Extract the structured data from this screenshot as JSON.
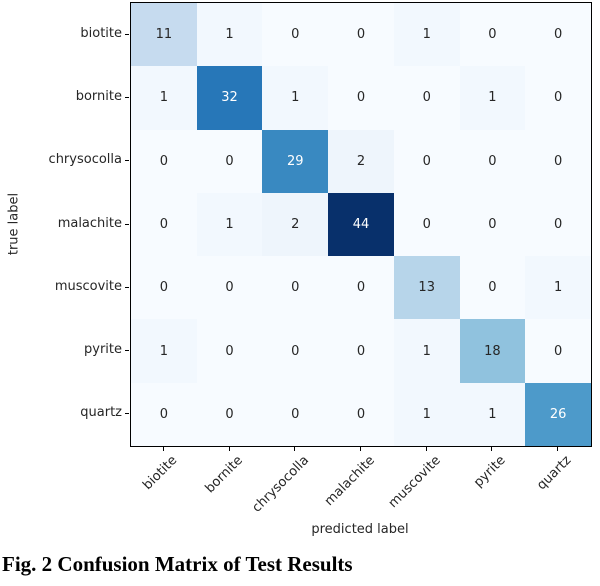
{
  "figure": {
    "caption": "Fig. 2 Confusion Matrix of Test Results"
  },
  "chart_data": {
    "type": "heatmap",
    "title": "",
    "xlabel": "predicted label",
    "ylabel": "true label",
    "x_categories": [
      "biotite",
      "bornite",
      "chrysocolla",
      "malachite",
      "muscovite",
      "pyrite",
      "quartz"
    ],
    "y_categories": [
      "biotite",
      "bornite",
      "chrysocolla",
      "malachite",
      "muscovite",
      "pyrite",
      "quartz"
    ],
    "matrix": [
      [
        11,
        1,
        0,
        0,
        1,
        0,
        0
      ],
      [
        1,
        32,
        1,
        0,
        0,
        1,
        0
      ],
      [
        0,
        0,
        29,
        2,
        0,
        0,
        0
      ],
      [
        0,
        1,
        2,
        44,
        0,
        0,
        0
      ],
      [
        0,
        0,
        0,
        0,
        13,
        0,
        1
      ],
      [
        1,
        0,
        0,
        0,
        1,
        18,
        0
      ],
      [
        0,
        0,
        0,
        0,
        1,
        1,
        26
      ]
    ],
    "vmin": 0,
    "vmax": 44,
    "colormap": "Blues",
    "colormap_stops": [
      "#f7fbff",
      "#deebf7",
      "#c6dbef",
      "#9ecae1",
      "#6baed6",
      "#4292c6",
      "#2171b5",
      "#08519c",
      "#08306b"
    ],
    "annotation_color_low": "#262626",
    "annotation_color_high": "#ffffff",
    "grid": false,
    "legend": "none"
  }
}
